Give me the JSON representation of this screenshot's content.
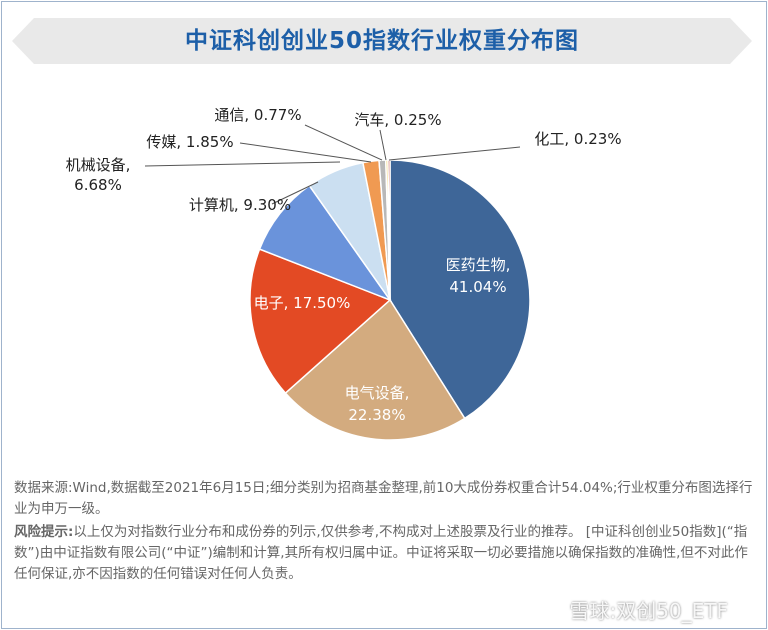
{
  "title": "中证科创创业50指数行业权重分布图",
  "chart_data": {
    "type": "pie",
    "title": "中证科创创业50指数行业权重分布图",
    "slices": [
      {
        "name": "医药生物",
        "value": 41.04,
        "label": "41.04%",
        "color": "#3e6698"
      },
      {
        "name": "电气设备",
        "value": 22.38,
        "label": "22.38%",
        "color": "#d3ab7f"
      },
      {
        "name": "电子",
        "value": 17.5,
        "label": "17.50%",
        "color": "#e34a24"
      },
      {
        "name": "计算机",
        "value": 9.3,
        "label": "9.30%",
        "color": "#6a93db"
      },
      {
        "name": "机械设备",
        "value": 6.68,
        "label": "6.68%",
        "color": "#cbdff1"
      },
      {
        "name": "传媒",
        "value": 1.85,
        "label": "1.85%",
        "color": "#f09a52"
      },
      {
        "name": "通信",
        "value": 0.77,
        "label": "0.77%",
        "color": "#b8b8b8"
      },
      {
        "name": "汽车",
        "value": 0.25,
        "label": "0.25%",
        "color": "#f3d36a"
      },
      {
        "name": "化工",
        "value": 0.23,
        "label": "0.23%",
        "color": "#c0392b"
      }
    ]
  },
  "notes": {
    "source": "数据来源:Wind,数据截至2021年6月15日;细分类别为招商基金整理,前10大成份券权重合计54.04%;行业权重分布图选择行业为申万一级。",
    "risk_label": "风险提示:",
    "risk_text": "以上仅为对指数行业分布和成份券的列示,仅供参考,不构成对上述股票及行业的推荐。 [中证科创创业50指数](“指数”)由中证指数有限公司(“中证”)编制和计算,其所有权归属中证。中证将采取一切必要措施以确保指数的准确性,但不对此作任何保证,亦不因指数的任何错误对任何人负责。"
  },
  "watermark": "雪球:双创50_ETF"
}
